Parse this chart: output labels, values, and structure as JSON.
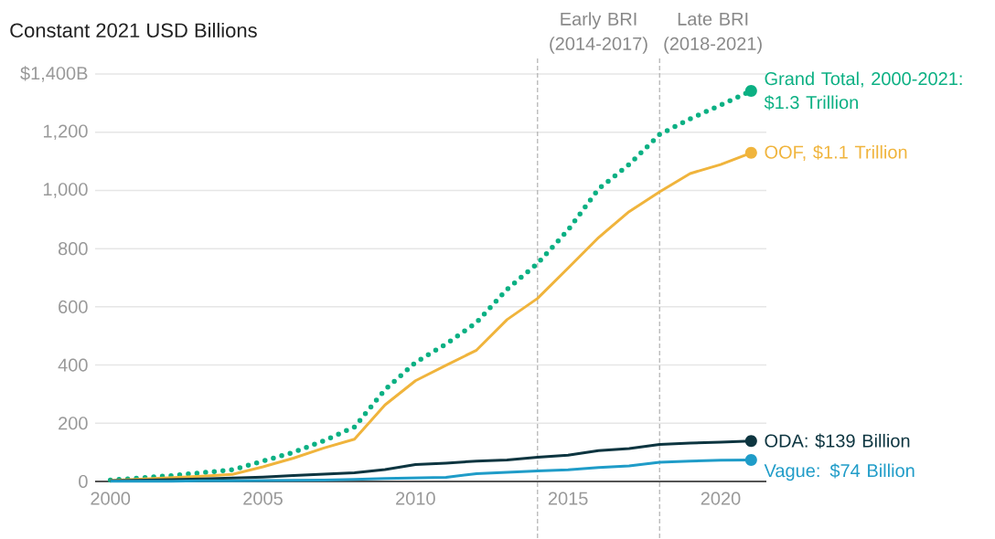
{
  "chart_data": {
    "type": "line",
    "title": "Constant 2021 USD Billions",
    "x": [
      2000,
      2001,
      2002,
      2003,
      2004,
      2005,
      2006,
      2007,
      2008,
      2009,
      2010,
      2011,
      2012,
      2013,
      2014,
      2015,
      2016,
      2017,
      2018,
      2019,
      2020,
      2021
    ],
    "series": [
      {
        "name": "Grand Total, 2000-2021: $1.3 Trillion",
        "color": "#0bb083",
        "line_style": "dotted",
        "values": [
          5,
          12,
          20,
          30,
          40,
          70,
          100,
          140,
          187,
          315,
          409,
          472,
          546,
          660,
          749,
          864,
          1005,
          1089,
          1192,
          1246,
          1293,
          1342
        ]
      },
      {
        "name": "OOF, $1.1 Trillion",
        "color": "#f0b43c",
        "values": [
          3,
          8,
          13,
          18,
          24,
          50,
          80,
          115,
          145,
          263,
          346,
          399,
          451,
          556,
          629,
          733,
          838,
          927,
          995,
          1058,
          1089,
          1129
        ]
      },
      {
        "name": "ODA: $139 Billion",
        "color": "#0d3540",
        "values": [
          2,
          4,
          6,
          9,
          12,
          15,
          20,
          25,
          30,
          41,
          58,
          63,
          70,
          74,
          83,
          90,
          106,
          113,
          127,
          132,
          135,
          139
        ]
      },
      {
        "name": "Vague: $74 Billion",
        "color": "#1f9cc8",
        "values": [
          1,
          1,
          1,
          2,
          2,
          3,
          4,
          5,
          7,
          10,
          12,
          14,
          27,
          31,
          36,
          40,
          48,
          53,
          66,
          70,
          73,
          74
        ]
      }
    ],
    "xlim": [
      1999.5,
      2021.5
    ],
    "ylim": [
      0,
      1400
    ],
    "xticks": [
      2000,
      2005,
      2010,
      2015,
      2020
    ],
    "yticks": [
      0,
      200,
      400,
      600,
      800,
      {
        "value": 1000,
        "label": "1,000"
      },
      {
        "value": 1200,
        "label": "1,200"
      },
      {
        "value": 1400,
        "label": "$1,400B"
      }
    ],
    "grid": "y",
    "ref_lines": [
      {
        "axis": "x",
        "value": 2014,
        "label": "Early BRI (2014-2017)",
        "color": "#b0b0b0",
        "line_style": "dashed"
      },
      {
        "axis": "x",
        "value": 2018,
        "label": "Late BRI (2018-2021)",
        "color": "#b0b0b0",
        "line_style": "dashed"
      }
    ]
  }
}
